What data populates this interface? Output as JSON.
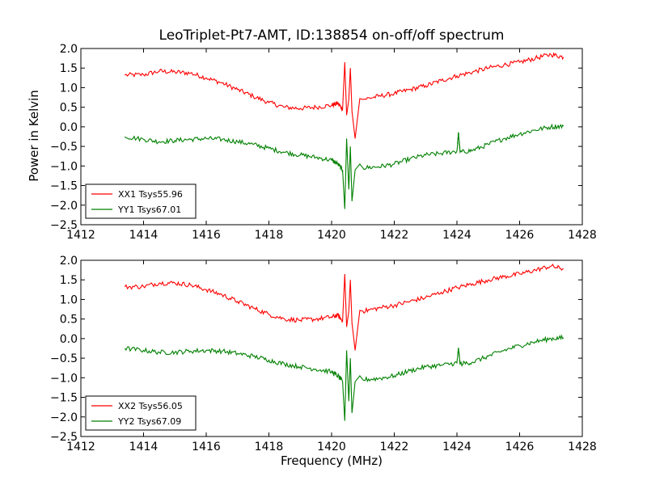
{
  "title": "LeoTriplet-Pt7-AMT, ID:138854 on-off/off spectrum",
  "chart_data": [
    {
      "type": "line",
      "title": "LeoTriplet-Pt7-AMT, ID:138854 on-off/off spectrum",
      "xlabel": "",
      "ylabel": "Power in Kelvin",
      "xlim": [
        1412,
        1428
      ],
      "ylim": [
        -2.5,
        2.0
      ],
      "xticks": [
        "1412",
        "1414",
        "1416",
        "1418",
        "1420",
        "1422",
        "1424",
        "1426",
        "1428"
      ],
      "yticks": [
        "2.0",
        "1.5",
        "1.0",
        "0.5",
        "0.0",
        "−0.5",
        "−1.0",
        "−1.5",
        "−2.0",
        "−2.5"
      ],
      "grid": false,
      "legend_position": "lower-left",
      "series": [
        {
          "name": "XX1 Tsys55.96",
          "color": "#ff0000",
          "x": [
            1413.4,
            1414.0,
            1414.5,
            1415.0,
            1415.5,
            1416.0,
            1416.5,
            1417.0,
            1417.5,
            1418.0,
            1418.5,
            1419.0,
            1419.5,
            1420.0,
            1420.2,
            1420.35,
            1420.42,
            1420.48,
            1420.55,
            1420.6,
            1420.65,
            1420.75,
            1420.9,
            1421.0,
            1421.5,
            1422.0,
            1422.5,
            1423.0,
            1423.5,
            1424.0,
            1424.5,
            1425.0,
            1425.5,
            1426.0,
            1426.5,
            1427.0,
            1427.4
          ],
          "y": [
            1.32,
            1.33,
            1.42,
            1.4,
            1.37,
            1.25,
            1.12,
            0.95,
            0.78,
            0.62,
            0.5,
            0.47,
            0.5,
            0.55,
            0.6,
            0.45,
            1.65,
            0.3,
            0.7,
            1.5,
            0.4,
            -0.3,
            0.72,
            0.7,
            0.78,
            0.85,
            0.95,
            1.05,
            1.18,
            1.3,
            1.4,
            1.5,
            1.58,
            1.65,
            1.75,
            1.85,
            1.78
          ]
        },
        {
          "name": "YY1 Tsys67.01",
          "color": "#008000",
          "x": [
            1413.4,
            1414.0,
            1414.5,
            1415.0,
            1415.5,
            1416.0,
            1416.5,
            1417.0,
            1417.5,
            1418.0,
            1418.5,
            1419.0,
            1419.5,
            1420.0,
            1420.2,
            1420.35,
            1420.42,
            1420.48,
            1420.55,
            1420.6,
            1420.65,
            1420.75,
            1420.9,
            1421.0,
            1421.5,
            1422.0,
            1422.5,
            1423.0,
            1423.5,
            1424.0,
            1424.05,
            1424.1,
            1424.5,
            1425.0,
            1425.5,
            1426.0,
            1426.5,
            1427.0,
            1427.4
          ],
          "y": [
            -0.25,
            -0.32,
            -0.38,
            -0.35,
            -0.32,
            -0.3,
            -0.32,
            -0.38,
            -0.45,
            -0.55,
            -0.65,
            -0.72,
            -0.78,
            -0.85,
            -0.95,
            -1.1,
            -2.1,
            -0.3,
            -1.6,
            -0.5,
            -1.9,
            -1.1,
            -0.95,
            -1.05,
            -1.02,
            -0.95,
            -0.82,
            -0.72,
            -0.68,
            -0.62,
            -0.15,
            -0.65,
            -0.6,
            -0.45,
            -0.3,
            -0.18,
            -0.08,
            0.0,
            0.02
          ]
        }
      ]
    },
    {
      "type": "line",
      "title": "",
      "xlabel": "Frequency (MHz)",
      "ylabel": "",
      "xlim": [
        1412,
        1428
      ],
      "ylim": [
        -2.5,
        2.0
      ],
      "xticks": [
        "1412",
        "1414",
        "1416",
        "1418",
        "1420",
        "1422",
        "1424",
        "1426",
        "1428"
      ],
      "yticks": [
        "2.0",
        "1.5",
        "1.0",
        "0.5",
        "0.0",
        "−0.5",
        "−1.0",
        "−1.5",
        "−2.0",
        "−2.5"
      ],
      "grid": false,
      "legend_position": "lower-left",
      "series": [
        {
          "name": "XX2 Tsys56.05",
          "color": "#ff0000",
          "x": [
            1413.4,
            1414.0,
            1414.5,
            1415.0,
            1415.5,
            1416.0,
            1416.5,
            1417.0,
            1417.5,
            1418.0,
            1418.5,
            1419.0,
            1419.5,
            1420.0,
            1420.2,
            1420.35,
            1420.42,
            1420.48,
            1420.55,
            1420.6,
            1420.65,
            1420.75,
            1420.9,
            1421.0,
            1421.5,
            1422.0,
            1422.5,
            1423.0,
            1423.5,
            1424.0,
            1424.5,
            1425.0,
            1425.5,
            1426.0,
            1426.5,
            1427.0,
            1427.4
          ],
          "y": [
            1.32,
            1.33,
            1.42,
            1.42,
            1.37,
            1.25,
            1.12,
            0.95,
            0.78,
            0.62,
            0.5,
            0.47,
            0.5,
            0.55,
            0.6,
            0.45,
            1.65,
            0.3,
            0.7,
            1.5,
            0.4,
            -0.3,
            0.72,
            0.7,
            0.78,
            0.85,
            0.95,
            1.05,
            1.18,
            1.3,
            1.4,
            1.5,
            1.58,
            1.65,
            1.75,
            1.85,
            1.78
          ]
        },
        {
          "name": "YY2 Tsys67.09",
          "color": "#008000",
          "x": [
            1413.4,
            1414.0,
            1414.5,
            1415.0,
            1415.5,
            1416.0,
            1416.5,
            1417.0,
            1417.5,
            1418.0,
            1418.5,
            1419.0,
            1419.5,
            1420.0,
            1420.2,
            1420.35,
            1420.42,
            1420.48,
            1420.55,
            1420.6,
            1420.65,
            1420.75,
            1420.9,
            1421.0,
            1421.5,
            1422.0,
            1422.5,
            1423.0,
            1423.5,
            1424.0,
            1424.05,
            1424.1,
            1424.5,
            1425.0,
            1425.5,
            1426.0,
            1426.5,
            1427.0,
            1427.4
          ],
          "y": [
            -0.25,
            -0.3,
            -0.35,
            -0.35,
            -0.32,
            -0.3,
            -0.32,
            -0.38,
            -0.45,
            -0.55,
            -0.65,
            -0.72,
            -0.78,
            -0.85,
            -0.95,
            -1.1,
            -2.1,
            -0.3,
            -1.6,
            -0.5,
            -1.9,
            -1.1,
            -0.95,
            -1.05,
            -1.02,
            -0.95,
            -0.82,
            -0.72,
            -0.68,
            -0.62,
            -0.25,
            -0.65,
            -0.6,
            -0.45,
            -0.3,
            -0.18,
            -0.08,
            0.0,
            0.02
          ]
        }
      ]
    }
  ]
}
